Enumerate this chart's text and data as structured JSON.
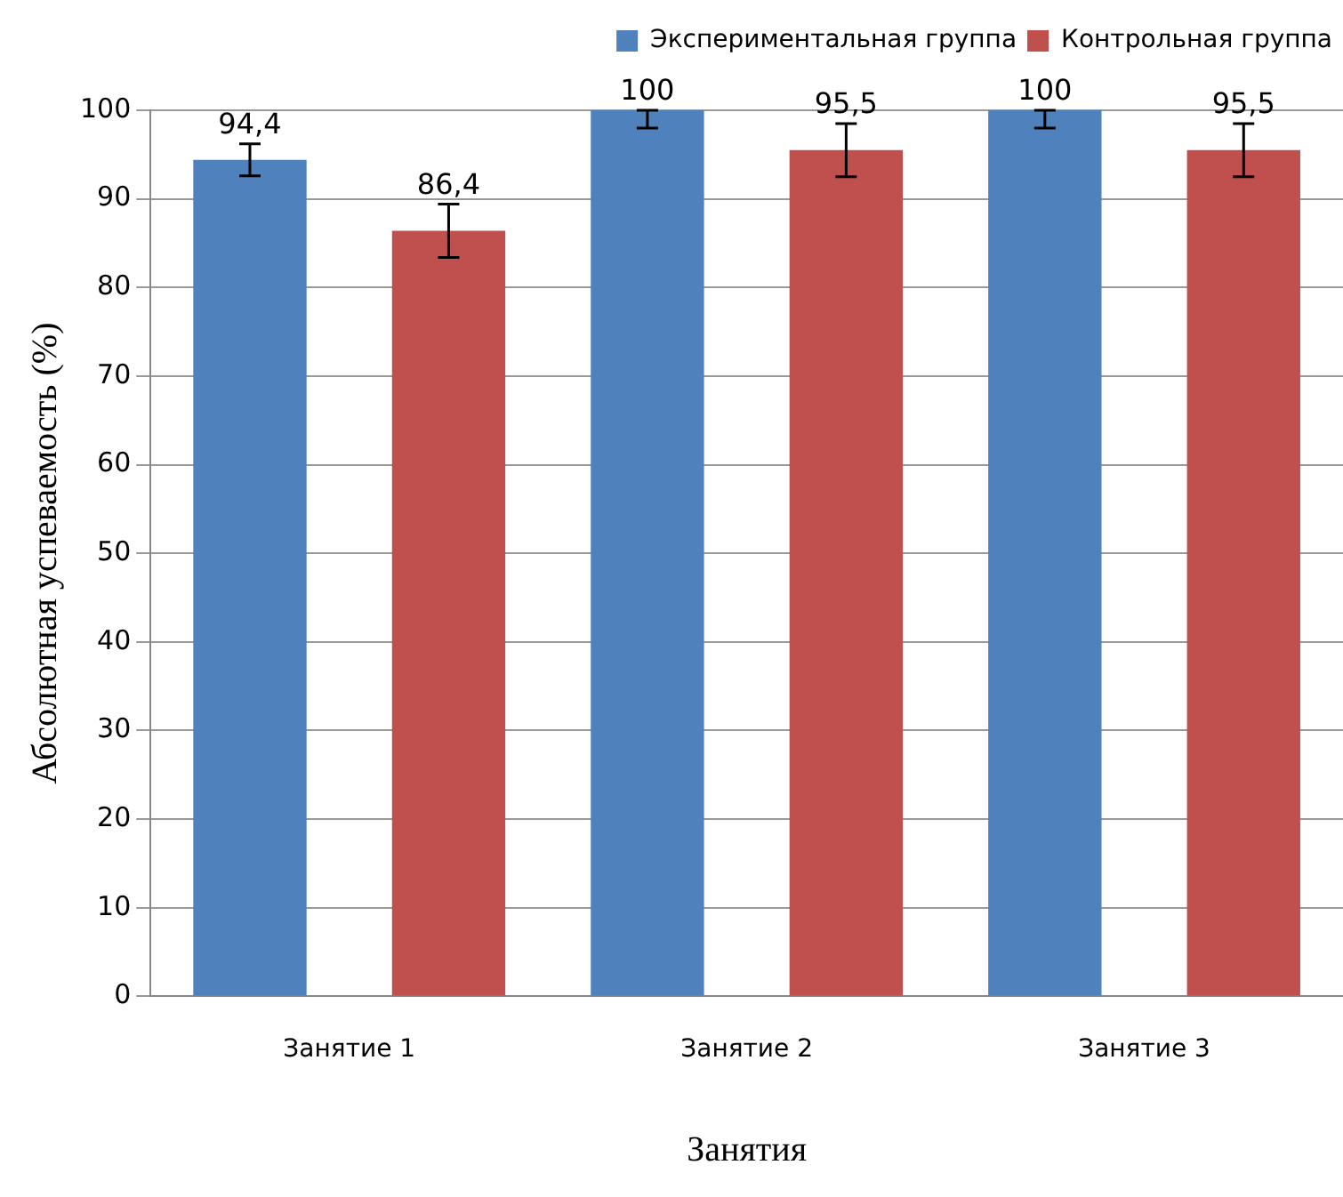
{
  "chart_data": {
    "type": "bar",
    "xlabel": "Занятия",
    "ylabel": "Абсолютная успеваемость (%)",
    "categories": [
      "Занятие 1",
      "Занятие 2",
      "Занятие 3"
    ],
    "series": [
      {
        "name": "Экспериментальная группа",
        "color": "#4f81bd",
        "values": [
          94.4,
          100,
          100
        ],
        "value_labels": [
          "94,4",
          "100",
          "100"
        ],
        "errors": [
          1.8,
          [
            98,
            100
          ],
          [
            98,
            100
          ]
        ]
      },
      {
        "name": "Контрольная группа",
        "color": "#c0504d",
        "values": [
          86.4,
          95.5,
          95.5
        ],
        "value_labels": [
          "86,4",
          "95,5",
          "95,5"
        ],
        "errors": [
          3,
          3,
          3
        ]
      }
    ],
    "ylim": [
      0,
      100
    ],
    "yticks": [
      0,
      10,
      20,
      30,
      40,
      50,
      60,
      70,
      80,
      90,
      100
    ],
    "grid": "y",
    "legend": "top right"
  }
}
